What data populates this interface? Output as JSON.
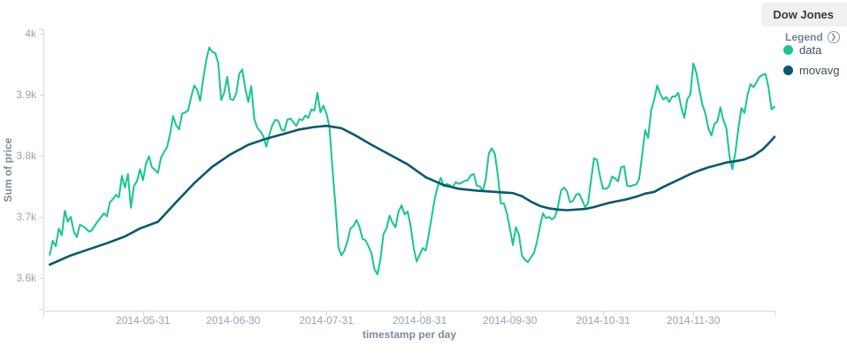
{
  "title": "Dow Jones",
  "legend": {
    "header_label": "Legend",
    "items": [
      {
        "label": "data",
        "color": "#17c68d"
      },
      {
        "label": "movavg",
        "color": "#08596f"
      }
    ]
  },
  "colors": {
    "axis_line": "#d8d8d8",
    "tick_label": "#9aa4af",
    "axis_title": "#7d8b9a",
    "data_series": "#17c68d",
    "movavg_series": "#08596f",
    "title_box_bg": "#f0f0f0"
  },
  "chart_data": {
    "type": "line",
    "title": "Dow Jones",
    "xlabel": "timestamp per day",
    "ylabel": "Sum of price",
    "legend_position": "right",
    "grid": false,
    "x_unit": "days since 2014-04-28",
    "x_axis": {
      "epoch_date": "2014-04-28",
      "range_days": [
        0,
        243
      ],
      "ticks": [
        {
          "label": "2014-05-31",
          "day": 33
        },
        {
          "label": "2014-06-30",
          "day": 63
        },
        {
          "label": "2014-07-31",
          "day": 94
        },
        {
          "label": "2014-08-31",
          "day": 125
        },
        {
          "label": "2014-09-30",
          "day": 155
        },
        {
          "label": "2014-10-31",
          "day": 186
        },
        {
          "label": "2014-11-30",
          "day": 216
        }
      ]
    },
    "y_axis": {
      "min": 3546,
      "max": 4007,
      "ticks": [
        {
          "label": "4k",
          "value": 4000
        },
        {
          "label": "3.9k",
          "value": 3900
        },
        {
          "label": "3.8k",
          "value": 3800
        },
        {
          "label": "3.7k",
          "value": 3700
        },
        {
          "label": "3.6k",
          "value": 3600
        }
      ]
    },
    "series": [
      {
        "name": "data",
        "color": "#17c68d",
        "stroke_width": 2,
        "points": [
          [
            2,
            3638
          ],
          [
            3,
            3661
          ],
          [
            4,
            3652
          ],
          [
            5,
            3681
          ],
          [
            6,
            3670
          ],
          [
            7,
            3710
          ],
          [
            8,
            3692
          ],
          [
            9,
            3700
          ],
          [
            10,
            3676
          ],
          [
            11,
            3667
          ],
          [
            12,
            3687
          ],
          [
            13,
            3685
          ],
          [
            14,
            3681
          ],
          [
            15,
            3676
          ],
          [
            16,
            3678
          ],
          [
            17,
            3686
          ],
          [
            18,
            3693
          ],
          [
            19,
            3699
          ],
          [
            20,
            3706
          ],
          [
            21,
            3701
          ],
          [
            22,
            3724
          ],
          [
            23,
            3729
          ],
          [
            24,
            3736
          ],
          [
            25,
            3732
          ],
          [
            26,
            3767
          ],
          [
            27,
            3748
          ],
          [
            28,
            3770
          ],
          [
            29,
            3715
          ],
          [
            30,
            3751
          ],
          [
            31,
            3758
          ],
          [
            32,
            3778
          ],
          [
            33,
            3760
          ],
          [
            34,
            3787
          ],
          [
            35,
            3799
          ],
          [
            36,
            3781
          ],
          [
            37,
            3777
          ],
          [
            38,
            3772
          ],
          [
            39,
            3797
          ],
          [
            40,
            3806
          ],
          [
            41,
            3814
          ],
          [
            42,
            3836
          ],
          [
            43,
            3865
          ],
          [
            44,
            3850
          ],
          [
            45,
            3843
          ],
          [
            46,
            3869
          ],
          [
            47,
            3871
          ],
          [
            48,
            3874
          ],
          [
            49,
            3896
          ],
          [
            50,
            3915
          ],
          [
            51,
            3908
          ],
          [
            52,
            3890
          ],
          [
            53,
            3925
          ],
          [
            54,
            3956
          ],
          [
            55,
            3977
          ],
          [
            56,
            3970
          ],
          [
            57,
            3968
          ],
          [
            58,
            3952
          ],
          [
            59,
            3891
          ],
          [
            60,
            3903
          ],
          [
            61,
            3929
          ],
          [
            62,
            3893
          ],
          [
            63,
            3891
          ],
          [
            64,
            3902
          ],
          [
            65,
            3934
          ],
          [
            66,
            3941
          ],
          [
            67,
            3910
          ],
          [
            68,
            3888
          ],
          [
            69,
            3914
          ],
          [
            70,
            3860
          ],
          [
            71,
            3846
          ],
          [
            72,
            3840
          ],
          [
            73,
            3832
          ],
          [
            74,
            3815
          ],
          [
            75,
            3834
          ],
          [
            76,
            3850
          ],
          [
            77,
            3859
          ],
          [
            78,
            3857
          ],
          [
            79,
            3843
          ],
          [
            80,
            3841
          ],
          [
            81,
            3859
          ],
          [
            82,
            3861
          ],
          [
            83,
            3855
          ],
          [
            84,
            3849
          ],
          [
            85,
            3860
          ],
          [
            86,
            3858
          ],
          [
            87,
            3866
          ],
          [
            88,
            3862
          ],
          [
            89,
            3876
          ],
          [
            90,
            3874
          ],
          [
            91,
            3903
          ],
          [
            92,
            3871
          ],
          [
            93,
            3882
          ],
          [
            94,
            3869
          ],
          [
            95,
            3848
          ],
          [
            96,
            3780
          ],
          [
            97,
            3718
          ],
          [
            98,
            3650
          ],
          [
            99,
            3637
          ],
          [
            100,
            3645
          ],
          [
            101,
            3660
          ],
          [
            102,
            3681
          ],
          [
            103,
            3685
          ],
          [
            104,
            3695
          ],
          [
            105,
            3684
          ],
          [
            106,
            3664
          ],
          [
            107,
            3662
          ],
          [
            108,
            3652
          ],
          [
            109,
            3640
          ],
          [
            110,
            3614
          ],
          [
            111,
            3606
          ],
          [
            112,
            3632
          ],
          [
            113,
            3672
          ],
          [
            114,
            3681
          ],
          [
            115,
            3702
          ],
          [
            116,
            3690
          ],
          [
            117,
            3683
          ],
          [
            118,
            3709
          ],
          [
            119,
            3719
          ],
          [
            120,
            3704
          ],
          [
            121,
            3709
          ],
          [
            122,
            3685
          ],
          [
            123,
            3649
          ],
          [
            124,
            3627
          ],
          [
            125,
            3638
          ],
          [
            126,
            3649
          ],
          [
            127,
            3645
          ],
          [
            128,
            3671
          ],
          [
            129,
            3700
          ],
          [
            130,
            3730
          ],
          [
            131,
            3750
          ],
          [
            132,
            3764
          ],
          [
            133,
            3750
          ],
          [
            134,
            3754
          ],
          [
            135,
            3752
          ],
          [
            136,
            3748
          ],
          [
            137,
            3757
          ],
          [
            138,
            3754
          ],
          [
            139,
            3756
          ],
          [
            140,
            3759
          ],
          [
            141,
            3760
          ],
          [
            142,
            3768
          ],
          [
            143,
            3770
          ],
          [
            144,
            3751
          ],
          [
            145,
            3750
          ],
          [
            146,
            3742
          ],
          [
            147,
            3762
          ],
          [
            148,
            3804
          ],
          [
            149,
            3812
          ],
          [
            150,
            3803
          ],
          [
            151,
            3768
          ],
          [
            152,
            3722
          ],
          [
            153,
            3722
          ],
          [
            154,
            3706
          ],
          [
            155,
            3681
          ],
          [
            156,
            3654
          ],
          [
            157,
            3683
          ],
          [
            158,
            3671
          ],
          [
            159,
            3637
          ],
          [
            160,
            3630
          ],
          [
            161,
            3626
          ],
          [
            162,
            3634
          ],
          [
            163,
            3641
          ],
          [
            164,
            3659
          ],
          [
            165,
            3684
          ],
          [
            166,
            3706
          ],
          [
            167,
            3698
          ],
          [
            168,
            3700
          ],
          [
            169,
            3696
          ],
          [
            170,
            3700
          ],
          [
            171,
            3717
          ],
          [
            172,
            3743
          ],
          [
            173,
            3748
          ],
          [
            174,
            3742
          ],
          [
            175,
            3724
          ],
          [
            176,
            3726
          ],
          [
            177,
            3736
          ],
          [
            178,
            3738
          ],
          [
            179,
            3728
          ],
          [
            180,
            3716
          ],
          [
            181,
            3722
          ],
          [
            182,
            3760
          ],
          [
            183,
            3796
          ],
          [
            184,
            3793
          ],
          [
            185,
            3766
          ],
          [
            186,
            3746
          ],
          [
            187,
            3746
          ],
          [
            188,
            3750
          ],
          [
            189,
            3766
          ],
          [
            190,
            3763
          ],
          [
            191,
            3758
          ],
          [
            192,
            3781
          ],
          [
            193,
            3783
          ],
          [
            194,
            3751
          ],
          [
            195,
            3750
          ],
          [
            196,
            3752
          ],
          [
            197,
            3753
          ],
          [
            198,
            3762
          ],
          [
            199,
            3801
          ],
          [
            200,
            3842
          ],
          [
            201,
            3829
          ],
          [
            202,
            3874
          ],
          [
            203,
            3892
          ],
          [
            204,
            3915
          ],
          [
            205,
            3901
          ],
          [
            206,
            3892
          ],
          [
            207,
            3896
          ],
          [
            208,
            3888
          ],
          [
            209,
            3897
          ],
          [
            210,
            3897
          ],
          [
            211,
            3903
          ],
          [
            212,
            3879
          ],
          [
            213,
            3862
          ],
          [
            214,
            3893
          ],
          [
            215,
            3900
          ],
          [
            216,
            3951
          ],
          [
            217,
            3936
          ],
          [
            218,
            3908
          ],
          [
            219,
            3884
          ],
          [
            220,
            3869
          ],
          [
            221,
            3845
          ],
          [
            222,
            3833
          ],
          [
            223,
            3852
          ],
          [
            224,
            3856
          ],
          [
            225,
            3879
          ],
          [
            226,
            3858
          ],
          [
            227,
            3845
          ],
          [
            228,
            3800
          ],
          [
            229,
            3778
          ],
          [
            230,
            3806
          ],
          [
            231,
            3845
          ],
          [
            232,
            3878
          ],
          [
            233,
            3870
          ],
          [
            234,
            3899
          ],
          [
            235,
            3917
          ],
          [
            236,
            3912
          ],
          [
            237,
            3920
          ],
          [
            238,
            3929
          ],
          [
            239,
            3932
          ],
          [
            240,
            3934
          ],
          [
            241,
            3912
          ],
          [
            242,
            3876
          ],
          [
            243,
            3880
          ]
        ]
      },
      {
        "name": "movavg",
        "color": "#08596f",
        "stroke_width": 2.6,
        "points": [
          [
            2,
            3622
          ],
          [
            9,
            3637
          ],
          [
            15,
            3647
          ],
          [
            21,
            3657
          ],
          [
            27,
            3668
          ],
          [
            32,
            3681
          ],
          [
            38,
            3692
          ],
          [
            44,
            3724
          ],
          [
            50,
            3755
          ],
          [
            56,
            3782
          ],
          [
            62,
            3802
          ],
          [
            68,
            3818
          ],
          [
            74,
            3828
          ],
          [
            80,
            3836
          ],
          [
            85,
            3843
          ],
          [
            90,
            3847
          ],
          [
            94,
            3849
          ],
          [
            99,
            3845
          ],
          [
            103,
            3835
          ],
          [
            109,
            3818
          ],
          [
            115,
            3802
          ],
          [
            121,
            3786
          ],
          [
            127,
            3765
          ],
          [
            133,
            3752
          ],
          [
            138,
            3746
          ],
          [
            144,
            3743
          ],
          [
            150,
            3741
          ],
          [
            156,
            3739
          ],
          [
            159,
            3734
          ],
          [
            162,
            3725
          ],
          [
            165,
            3718
          ],
          [
            168,
            3714
          ],
          [
            171,
            3712
          ],
          [
            174,
            3711
          ],
          [
            177,
            3712
          ],
          [
            180,
            3713
          ],
          [
            183,
            3716
          ],
          [
            185,
            3719
          ],
          [
            188,
            3723
          ],
          [
            191,
            3726
          ],
          [
            194,
            3729
          ],
          [
            197,
            3733
          ],
          [
            200,
            3738
          ],
          [
            203,
            3741
          ],
          [
            206,
            3749
          ],
          [
            209,
            3756
          ],
          [
            212,
            3763
          ],
          [
            215,
            3770
          ],
          [
            218,
            3776
          ],
          [
            221,
            3781
          ],
          [
            224,
            3785
          ],
          [
            227,
            3789
          ],
          [
            230,
            3791
          ],
          [
            233,
            3794
          ],
          [
            236,
            3800
          ],
          [
            239,
            3810
          ],
          [
            241,
            3820
          ],
          [
            243,
            3831
          ]
        ]
      }
    ]
  }
}
